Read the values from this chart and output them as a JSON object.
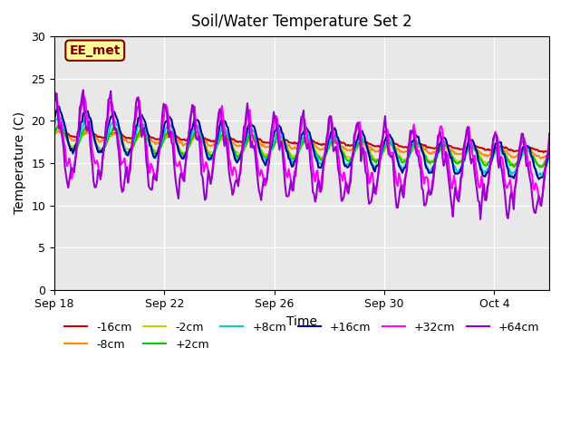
{
  "title": "Soil/Water Temperature Set 2",
  "xlabel": "Time",
  "ylabel": "Temperature (C)",
  "ylim": [
    0,
    30
  ],
  "yticks": [
    0,
    5,
    10,
    15,
    20,
    25,
    30
  ],
  "xlim": [
    0,
    18
  ],
  "background_color": "#e8e8e8",
  "annotation_text": "EE_met",
  "annotation_bg": "#ffff99",
  "annotation_border": "#800000",
  "series_names": [
    "-16cm",
    "-8cm",
    "-2cm",
    "+2cm",
    "+8cm",
    "+16cm",
    "+32cm",
    "+64cm"
  ],
  "series_colors": [
    "#cc0000",
    "#ff8800",
    "#cccc00",
    "#00cc00",
    "#00cccc",
    "#000099",
    "#ff00ff",
    "#9900cc"
  ],
  "legend_row1": [
    "-16cm",
    "-8cm",
    "-2cm",
    "+2cm",
    "+8cm",
    "+16cm"
  ],
  "legend_row2": [
    "+32cm",
    "+64cm"
  ],
  "xtick_labels": [
    "Sep 18",
    "Sep 22",
    "Sep 26",
    "Sep 30",
    "Oct 4"
  ],
  "xtick_positions": [
    0,
    4,
    8,
    12,
    16
  ]
}
